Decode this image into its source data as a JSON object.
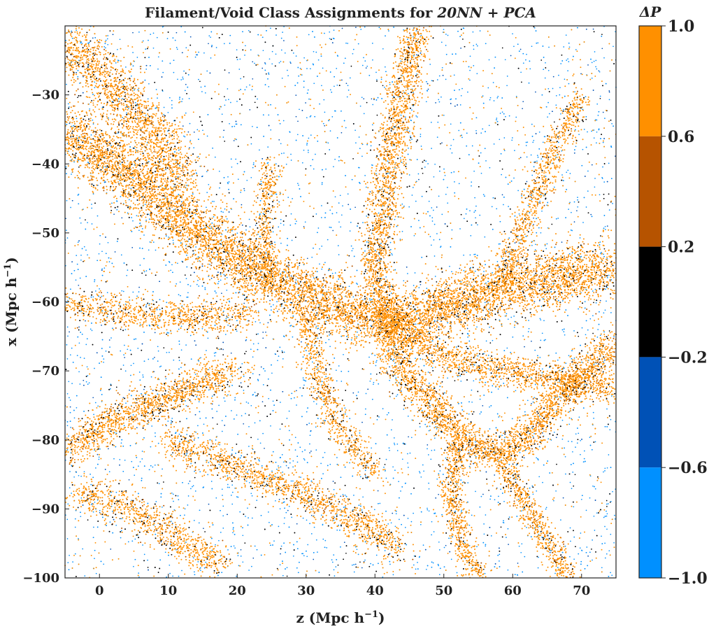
{
  "chart_data": {
    "type": "scatter",
    "title": {
      "prefix": "Filament/Void Class Assignments for ",
      "emphasis": "20NN + PCA"
    },
    "xlabel": "z (Mpc h",
    "ylabel": "x (Mpc h",
    "label_sup": "−1",
    "label_close": ")",
    "xlim": [
      -5,
      75
    ],
    "ylim": [
      -100,
      -20
    ],
    "xticks": [
      0,
      10,
      20,
      30,
      40,
      50,
      60,
      70
    ],
    "yticks": [
      -30,
      -40,
      -50,
      -60,
      -70,
      -80,
      -90,
      -100
    ],
    "grid": false,
    "colorbar": {
      "label": "ΔP",
      "range": [
        -1.0,
        1.0
      ],
      "ticks": [
        "1.0",
        "0.6",
        "0.2",
        "−0.2",
        "−0.6",
        "−1.0"
      ],
      "bins": [
        {
          "from": 0.6,
          "to": 1.0,
          "color": "#ff9000"
        },
        {
          "from": 0.2,
          "to": 0.6,
          "color": "#b65300"
        },
        {
          "from": -0.2,
          "to": 0.2,
          "color": "#000000"
        },
        {
          "from": -0.6,
          "to": -0.2,
          "color": "#0051b6"
        },
        {
          "from": -1.0,
          "to": -0.6,
          "color": "#0090ff"
        }
      ]
    },
    "filaments": [
      {
        "points": [
          [
            -5,
            -35
          ],
          [
            5,
            -42
          ],
          [
            12,
            -48
          ],
          [
            20,
            -54
          ],
          [
            30,
            -59
          ],
          [
            38,
            -62
          ],
          [
            44,
            -63
          ],
          [
            52,
            -60
          ],
          [
            60,
            -58
          ],
          [
            68,
            -56
          ],
          [
            75,
            -55
          ]
        ],
        "width": 3.5,
        "density": 2.2
      },
      {
        "points": [
          [
            -5,
            -22
          ],
          [
            3,
            -30
          ],
          [
            8,
            -36
          ],
          [
            12,
            -42
          ]
        ],
        "width": 3.0,
        "density": 1.5
      },
      {
        "points": [
          [
            46,
            -20
          ],
          [
            44,
            -30
          ],
          [
            42,
            -40
          ],
          [
            40,
            -55
          ],
          [
            42,
            -63
          ]
        ],
        "width": 2.0,
        "density": 1.1
      },
      {
        "points": [
          [
            42,
            -63
          ],
          [
            44,
            -70
          ],
          [
            50,
            -77
          ],
          [
            56,
            -82
          ],
          [
            62,
            -80
          ],
          [
            68,
            -72
          ],
          [
            75,
            -66
          ]
        ],
        "width": 2.2,
        "density": 1.3
      },
      {
        "points": [
          [
            42,
            -63
          ],
          [
            50,
            -68
          ],
          [
            58,
            -70
          ],
          [
            66,
            -71
          ],
          [
            75,
            -73
          ]
        ],
        "width": 2.0,
        "density": 1.0
      },
      {
        "points": [
          [
            -5,
            -82
          ],
          [
            2,
            -77
          ],
          [
            8,
            -75
          ],
          [
            14,
            -72
          ],
          [
            20,
            -70
          ]
        ],
        "width": 2.2,
        "density": 1.2
      },
      {
        "points": [
          [
            -3,
            -88
          ],
          [
            5,
            -90
          ],
          [
            12,
            -95
          ],
          [
            18,
            -98
          ]
        ],
        "width": 2.2,
        "density": 0.9
      },
      {
        "points": [
          [
            10,
            -80
          ],
          [
            20,
            -84
          ],
          [
            30,
            -88
          ],
          [
            38,
            -92
          ],
          [
            44,
            -96
          ]
        ],
        "width": 2.0,
        "density": 0.9
      },
      {
        "points": [
          [
            52,
            -80
          ],
          [
            51,
            -88
          ],
          [
            53,
            -96
          ],
          [
            55,
            -100
          ]
        ],
        "width": 1.5,
        "density": 0.8
      },
      {
        "points": [
          [
            58,
            -82
          ],
          [
            62,
            -90
          ],
          [
            66,
            -96
          ],
          [
            68,
            -100
          ]
        ],
        "width": 1.5,
        "density": 0.8
      },
      {
        "points": [
          [
            58,
            -58
          ],
          [
            62,
            -48
          ],
          [
            66,
            -38
          ],
          [
            70,
            -30
          ]
        ],
        "width": 1.6,
        "density": 0.7
      },
      {
        "points": [
          [
            24,
            -58
          ],
          [
            24,
            -48
          ],
          [
            25,
            -40
          ]
        ],
        "width": 1.4,
        "density": 0.6
      },
      {
        "points": [
          [
            30,
            -62
          ],
          [
            32,
            -72
          ],
          [
            36,
            -80
          ],
          [
            40,
            -85
          ]
        ],
        "width": 1.6,
        "density": 0.7
      },
      {
        "points": [
          [
            -5,
            -60
          ],
          [
            5,
            -62
          ],
          [
            15,
            -62
          ],
          [
            22,
            -62
          ]
        ],
        "width": 2.0,
        "density": 0.8
      }
    ],
    "void_colors": [
      "#0090ff",
      "#0051b6"
    ],
    "filament_colors": [
      "#ff9000",
      "#b65300",
      "#000000"
    ]
  }
}
